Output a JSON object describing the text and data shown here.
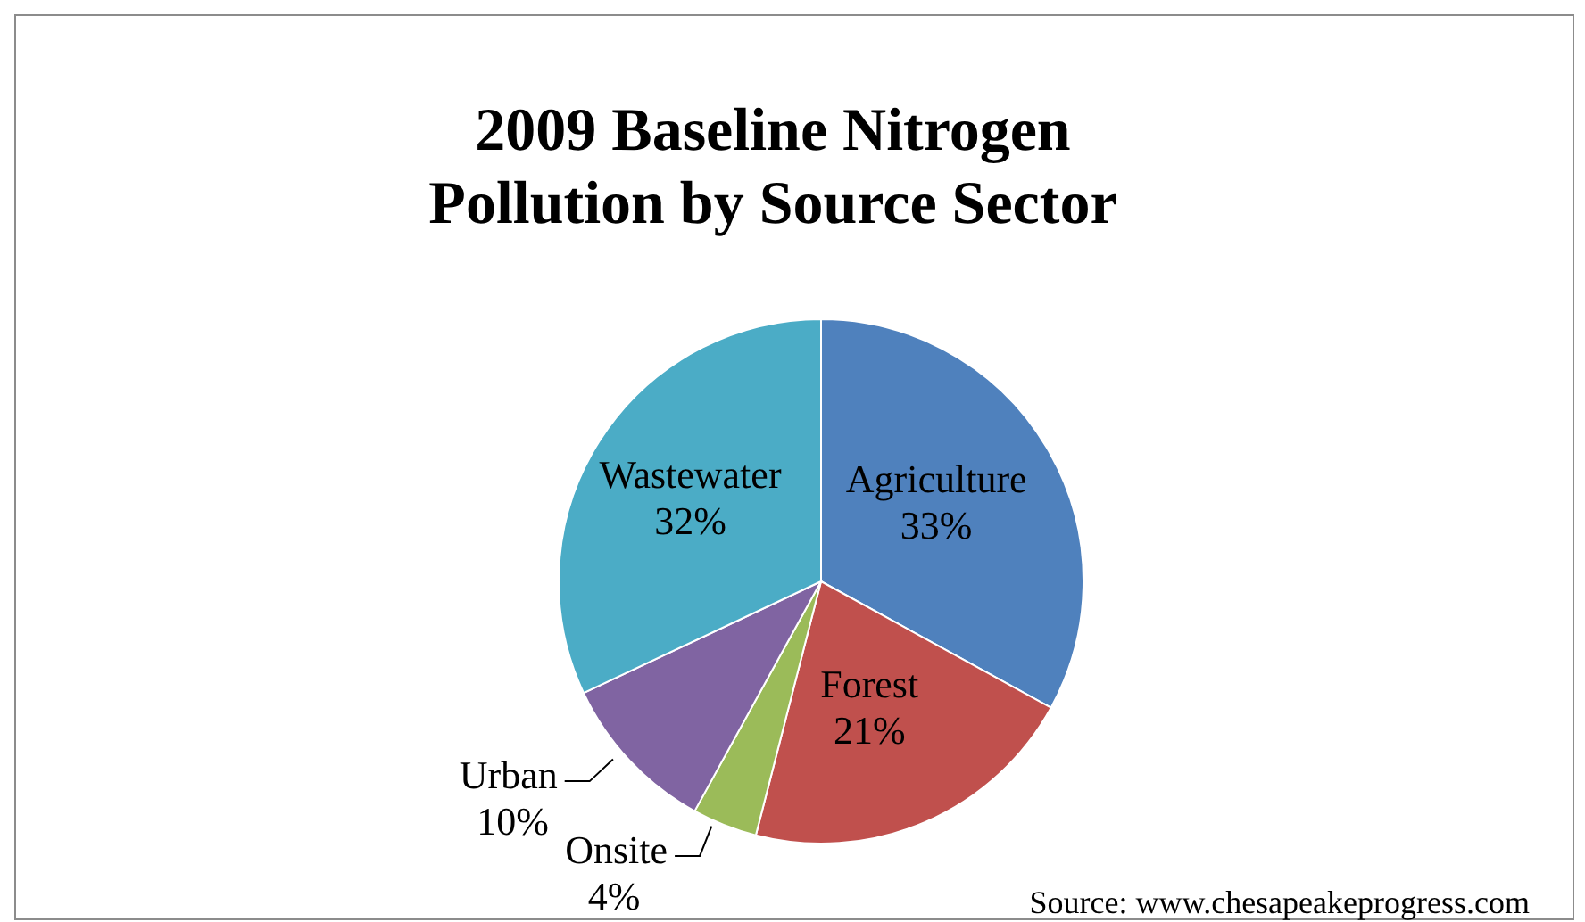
{
  "chart_data": {
    "type": "pie",
    "title": "2009 Baseline Nitrogen\nPollution by Source Sector",
    "categories": [
      "Agriculture",
      "Forest",
      "Onsite",
      "Urban",
      "Wastewater"
    ],
    "values": [
      33,
      21,
      4,
      10,
      32
    ],
    "value_labels": [
      "33%",
      "21%",
      "4%",
      "10%",
      "32%"
    ],
    "colors": [
      "#4f81bd",
      "#c0504d",
      "#9bbb59",
      "#8064a2",
      "#4bacc6"
    ],
    "annotations": [
      "Source: www.chesapeakeprogress.com"
    ]
  }
}
